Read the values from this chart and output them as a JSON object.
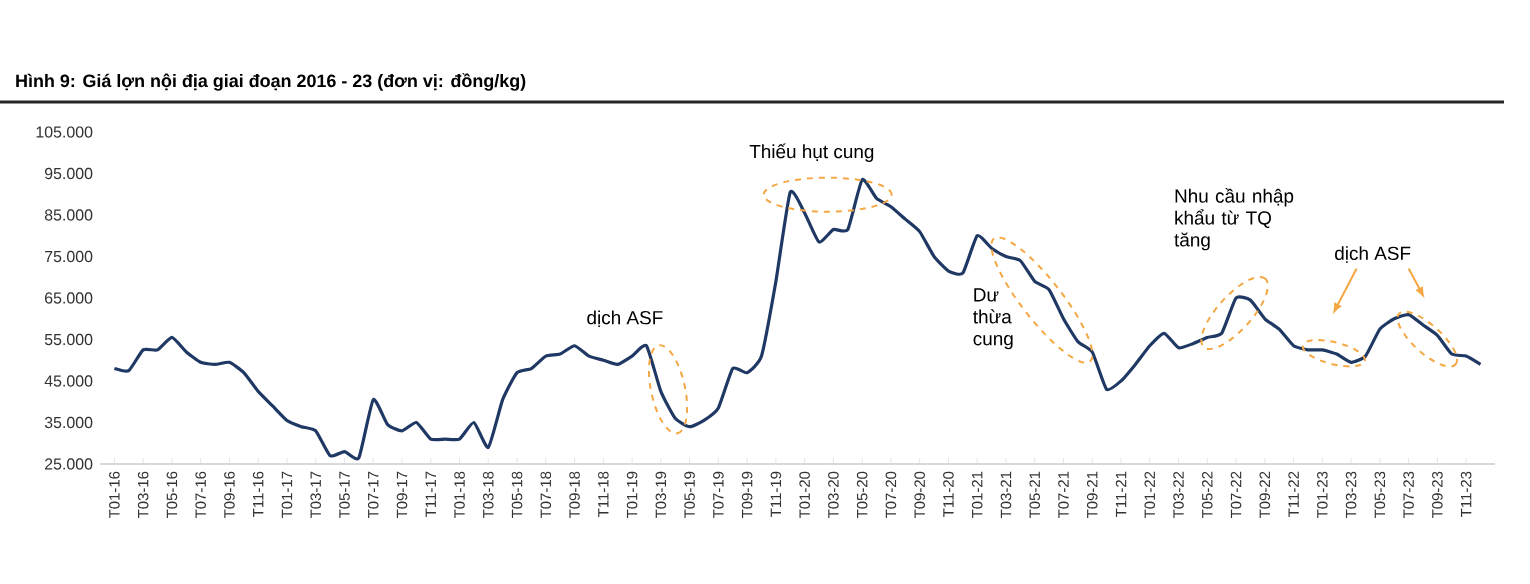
{
  "chart_data": {
    "type": "line",
    "title": "Hình 9: Giá lợn nội địa giai đoạn 2016 - 23 (đơn vị: đồng/kg)",
    "categories": [
      "T01-16",
      null,
      "T03-16",
      null,
      "T05-16",
      null,
      "T07-16",
      null,
      "T09-16",
      null,
      "T11-16",
      null,
      "T01-17",
      null,
      "T03-17",
      null,
      "T05-17",
      null,
      "T07-17",
      null,
      "T09-17",
      null,
      "T11-17",
      null,
      "T01-18",
      null,
      "T03-18",
      null,
      "T05-18",
      null,
      "T07-18",
      null,
      "T09-18",
      null,
      "T11-18",
      null,
      "T01-19",
      null,
      "T03-19",
      null,
      "T05-19",
      null,
      "T07-19",
      null,
      "T09-19",
      null,
      "T11-19",
      null,
      "T01-20",
      null,
      "T03-20",
      null,
      "T05-20",
      null,
      "T07-20",
      null,
      "T09-20",
      null,
      "T11-20",
      null,
      "T01-21",
      null,
      "T03-21",
      null,
      "T05-21",
      null,
      "T07-21",
      null,
      "T09-21",
      null,
      "T11-21",
      null,
      "T01-22",
      null,
      "T03-22",
      null,
      "T05-22",
      null,
      "T07-22",
      null,
      "T09-22",
      null,
      "T11-22",
      null,
      "T01-23",
      null,
      "T03-23",
      null,
      "T05-23",
      null,
      "T07-23",
      null,
      "T09-23",
      null,
      "T11-23",
      null
    ],
    "series": [
      {
        "color": "#1f3864",
        "values": [
          48000,
          47500,
          52500,
          52500,
          55500,
          52000,
          49500,
          49000,
          49500,
          47000,
          42500,
          39000,
          35500,
          34000,
          33000,
          27000,
          28000,
          26500,
          40500,
          34500,
          33000,
          35000,
          31000,
          31000,
          31000,
          35000,
          29000,
          40500,
          47000,
          48000,
          51000,
          51500,
          53500,
          51000,
          50000,
          49000,
          51000,
          53500,
          42500,
          36000,
          34000,
          35500,
          38500,
          48000,
          47000,
          51000,
          69000,
          90500,
          85500,
          78500,
          81500,
          81500,
          93500,
          89000,
          87000,
          84000,
          81000,
          75000,
          71500,
          71000,
          80000,
          77000,
          75000,
          74000,
          69000,
          67000,
          60000,
          54500,
          52000,
          43000,
          45000,
          49000,
          53500,
          56500,
          53000,
          54000,
          55500,
          56500,
          65000,
          64500,
          60000,
          57500,
          53500,
          52500,
          52500,
          51500,
          49500,
          51000,
          57500,
          60000,
          61000,
          58500,
          56000,
          51500,
          51000,
          49000
        ]
      }
    ],
    "ylim": [
      25000,
      105000
    ],
    "yticks": [
      {
        "value": 25000,
        "label": "25.000"
      },
      {
        "value": 35000,
        "label": "35.000"
      },
      {
        "value": 45000,
        "label": "45.000"
      },
      {
        "value": 55000,
        "label": "55.000"
      },
      {
        "value": 65000,
        "label": "65.000"
      },
      {
        "value": 75000,
        "label": "75.000"
      },
      {
        "value": 85000,
        "label": "85.000"
      },
      {
        "value": 95000,
        "label": "95.000"
      },
      {
        "value": 105000,
        "label": "105.000"
      }
    ],
    "grid": false,
    "marker": "none",
    "line_style": "solid",
    "annotations": [
      "dịch ASF",
      "Thiếu hụt cung",
      "Dư thừa cung",
      "Nhu cầu nhập khẩu từ TQ tăng",
      "dịch ASF"
    ]
  }
}
